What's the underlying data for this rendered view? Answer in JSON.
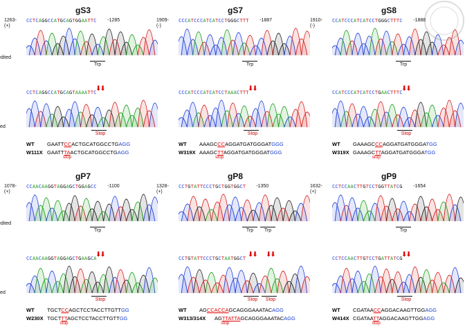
{
  "rows": {
    "unedited": "Unedited",
    "edited": "Edited",
    "trp": "Trp",
    "stop_label": "Stop",
    "stop_small": "stop"
  },
  "panels": [
    {
      "title": "gS3",
      "start": "1263-",
      "strand": "(+)",
      "end": "-1285",
      "seq_top": "CCTCAGGCCATGCAGTGGAATTC",
      "seq_edit": "CCTCAGGCCATGCAGTAAAATTC",
      "wt_label": "WT",
      "wt_pre": "GAATT",
      "wt_red": "CC",
      "wt_mid": "ACTGCATGGCCTG",
      "wt_blue": "AGG",
      "mut_label": "W111X",
      "mut_pre": "GAATT",
      "mut_red": "TA",
      "mut_mid": "ACTGCATGGCCTG",
      "mut_blue": "AGG"
    },
    {
      "title": "gS7",
      "start": "1909-",
      "strand": "(-)",
      "end": "-1887",
      "seq_top": "CCCATCCCATCATCCTGGGCTTT",
      "seq_edit": "CCCATCCCATCATCCTAAACTTT",
      "wt_label": "WT",
      "wt_pre": "AAAGC",
      "wt_red": "CC",
      "wt_mid": "AGGATGATGGGAT",
      "wt_blue": "GGG",
      "mut_label": "W319X",
      "mut_pre": "AAAGC",
      "mut_red": "TT",
      "mut_mid": "AGGATGATGGGAT",
      "mut_blue": "GGG"
    },
    {
      "title": "gS8",
      "start": "1910-",
      "strand": "(-)",
      "end": "-1888",
      "seq_top": "CCATCCCATCATCCTGGGCTTTC",
      "seq_edit": "CCATCCCATCATCCTGAACTTTC",
      "wt_label": "WT",
      "wt_pre": "GAAAGC",
      "wt_red": "CC",
      "wt_mid": "AGGATGATGGGA",
      "wt_blue": "TGG",
      "mut_label": "W319X",
      "mut_pre": "GAAAGC",
      "mut_red": "TT",
      "mut_mid": "AGGATGATGGGA",
      "mut_blue": "TGG"
    },
    {
      "title": "gP7",
      "start": "1078-",
      "strand": "(+)",
      "end": "-1100",
      "seq_top": "CCAACAAGGTAGGAGCTGGAGCC",
      "seq_edit": "CCAACAAGGTAGGAGCTGAAGCA",
      "wt_label": "WT",
      "wt_pre": "TGCT",
      "wt_red": "CC",
      "wt_mid": "AGCTCCTACCTTGTT",
      "wt_blue": "GG",
      "mut_label": "W230X",
      "mut_pre": "TGCT",
      "mut_red": "TT",
      "mut_mid": "AGCTCCTACCTTGTT",
      "mut_blue": "GG"
    },
    {
      "title": "gP8",
      "start": "1328-",
      "strand": "(+)",
      "end": "-1350",
      "seq_top": "CCTGTATTCCCTGCTGGTGGCT",
      "seq_edit": "CCTGTATTCCCTGCTAATGGCT",
      "wt_label": "WT",
      "wt_pre": "AG",
      "wt_red": "CCACCA",
      "wt_mid": "GCAGGGAAATAC",
      "wt_blue": "AGG",
      "mut_label": "W313/314X",
      "mut_pre": "AG",
      "mut_red": "TTATTA",
      "mut_mid": "GCAGGGAAATAC",
      "mut_blue": "AGG"
    },
    {
      "title": "gP9",
      "start": "1632-",
      "strand": "(+)",
      "end": "-1654",
      "seq_top": "CCTCCAACTTGTCCTGGTTATCG",
      "seq_edit": "CCTCCAACTTGTCCTGATTATCG",
      "wt_label": "WT",
      "wt_pre": "CGATAA",
      "wt_red": "CC",
      "wt_mid": "AGGACAAGTTGG",
      "wt_blue": "AGG",
      "mut_label": "W414X",
      "mut_pre": "CGATAA",
      "mut_red": "TT",
      "mut_mid": "AGGACAAGTTGG",
      "mut_blue": "AGG"
    }
  ]
}
